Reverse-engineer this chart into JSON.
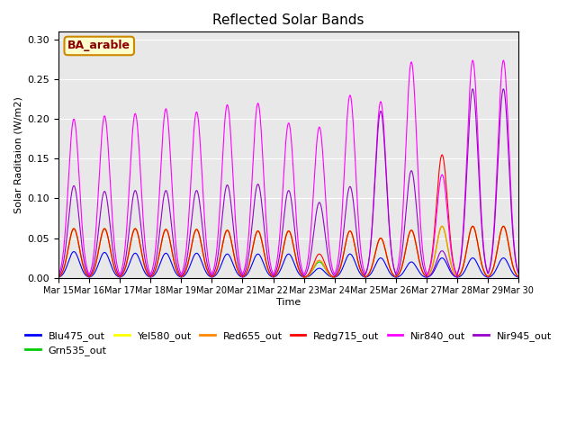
{
  "title": "Reflected Solar Bands",
  "xlabel": "Time",
  "ylabel": "Solar Raditaion (W/m2)",
  "annotation": "BA_arable",
  "ylim": [
    0,
    0.31
  ],
  "yticks": [
    0.0,
    0.05,
    0.1,
    0.15,
    0.2,
    0.25,
    0.3
  ],
  "series_colors": {
    "Blu475_out": "#0000ff",
    "Grn535_out": "#00cc00",
    "Yel580_out": "#ffff00",
    "Red655_out": "#ff8800",
    "Redg715_out": "#ff0000",
    "Nir840_out": "#ff00ff",
    "Nir945_out": "#9900cc"
  },
  "xtick_labels": [
    "Mar 15",
    "Mar 16",
    "Mar 17",
    "Mar 18",
    "Mar 19",
    "Mar 20",
    "Mar 21",
    "Mar 22",
    "Mar 23",
    "Mar 24",
    "Mar 25",
    "Mar 26",
    "Mar 27",
    "Mar 28",
    "Mar 29",
    "Mar 30"
  ],
  "n_days": 15,
  "points_per_day": 96,
  "day_peaks": {
    "Blu475_out": [
      0.033,
      0.032,
      0.031,
      0.031,
      0.031,
      0.03,
      0.03,
      0.03,
      0.012,
      0.03,
      0.025,
      0.02,
      0.025,
      0.025,
      0.025
    ],
    "Grn535_out": [
      0.062,
      0.062,
      0.062,
      0.061,
      0.061,
      0.06,
      0.059,
      0.059,
      0.02,
      0.059,
      0.05,
      0.06,
      0.065,
      0.065,
      0.065
    ],
    "Yel580_out": [
      0.062,
      0.062,
      0.062,
      0.061,
      0.061,
      0.06,
      0.059,
      0.059,
      0.022,
      0.059,
      0.05,
      0.06,
      0.065,
      0.065,
      0.065
    ],
    "Red655_out": [
      0.062,
      0.062,
      0.062,
      0.061,
      0.061,
      0.06,
      0.059,
      0.059,
      0.022,
      0.059,
      0.05,
      0.06,
      0.065,
      0.065,
      0.065
    ],
    "Redg715_out": [
      0.062,
      0.062,
      0.062,
      0.061,
      0.061,
      0.06,
      0.059,
      0.059,
      0.03,
      0.059,
      0.05,
      0.06,
      0.155,
      0.065,
      0.065
    ],
    "Nir840_out": [
      0.2,
      0.204,
      0.207,
      0.213,
      0.209,
      0.218,
      0.22,
      0.195,
      0.19,
      0.23,
      0.222,
      0.272,
      0.13,
      0.274,
      0.274
    ],
    "Nir945_out": [
      0.116,
      0.109,
      0.11,
      0.11,
      0.11,
      0.117,
      0.118,
      0.11,
      0.095,
      0.115,
      0.21,
      0.135,
      0.034,
      0.238,
      0.238
    ]
  }
}
